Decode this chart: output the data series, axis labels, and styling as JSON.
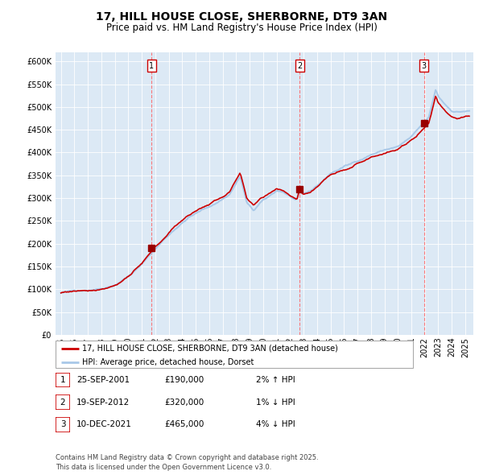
{
  "title_line1": "17, HILL HOUSE CLOSE, SHERBORNE, DT9 3AN",
  "title_line2": "Price paid vs. HM Land Registry's House Price Index (HPI)",
  "legend_line1": "17, HILL HOUSE CLOSE, SHERBORNE, DT9 3AN (detached house)",
  "legend_line2": "HPI: Average price, detached house, Dorset",
  "sale_events": [
    {
      "num": 1,
      "date": "25-SEP-2001",
      "price": 190000,
      "pct": "2%",
      "dir": "↑"
    },
    {
      "num": 2,
      "date": "19-SEP-2012",
      "price": 320000,
      "pct": "1%",
      "dir": "↓"
    },
    {
      "num": 3,
      "date": "10-DEC-2021",
      "price": 465000,
      "pct": "4%",
      "dir": "↓"
    }
  ],
  "sale_years": [
    2001.73,
    2012.72,
    2021.94
  ],
  "sale_prices": [
    190000,
    320000,
    465000
  ],
  "hpi_color": "#a8c8e8",
  "price_color": "#CC0000",
  "marker_color": "#990000",
  "dashed_color": "#FF6666",
  "bg_color": "#dce9f5",
  "grid_color": "#ffffff",
  "ylim": [
    0,
    620000
  ],
  "yticks": [
    0,
    50000,
    100000,
    150000,
    200000,
    250000,
    300000,
    350000,
    400000,
    450000,
    500000,
    550000,
    600000
  ],
  "footnote": "Contains HM Land Registry data © Crown copyright and database right 2025.\nThis data is licensed under the Open Government Licence v3.0.",
  "title_fontsize": 10,
  "subtitle_fontsize": 8.5,
  "axis_fontsize": 7
}
